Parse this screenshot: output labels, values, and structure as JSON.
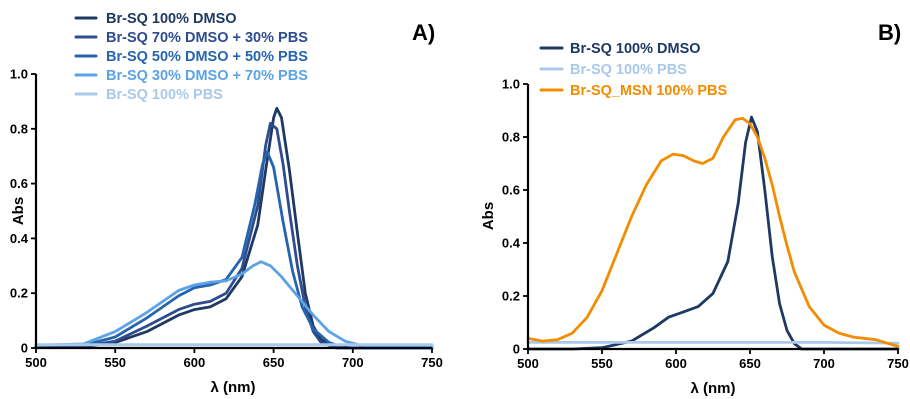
{
  "chart_data": [
    {
      "type": "line",
      "panel_label": "A)",
      "xlabel": "λ (nm)",
      "ylabel": "Abs",
      "xlim": [
        500,
        750
      ],
      "ylim": [
        0,
        1.0
      ],
      "xticks": [
        500,
        550,
        600,
        650,
        700,
        750
      ],
      "yticks": [
        0,
        0.2,
        0.4,
        0.6,
        0.8,
        1.0
      ],
      "xtick_labels": [
        "500",
        "550",
        "600",
        "650",
        "700",
        "750"
      ],
      "ytick_labels": [
        "0",
        "0.2",
        "0.4",
        "0.6",
        "0.8",
        "1.0"
      ],
      "legend_position": "top-left",
      "series": [
        {
          "name": "Br-SQ 100% DMSO",
          "color": "#1f3864",
          "points": [
            [
              500,
              0.005
            ],
            [
              530,
              0.005
            ],
            [
              550,
              0.02
            ],
            [
              570,
              0.06
            ],
            [
              590,
              0.12
            ],
            [
              600,
              0.14
            ],
            [
              610,
              0.15
            ],
            [
              620,
              0.18
            ],
            [
              630,
              0.26
            ],
            [
              640,
              0.45
            ],
            [
              645,
              0.65
            ],
            [
              650,
              0.84
            ],
            [
              652,
              0.875
            ],
            [
              655,
              0.84
            ],
            [
              660,
              0.65
            ],
            [
              665,
              0.42
            ],
            [
              670,
              0.2
            ],
            [
              675,
              0.08
            ],
            [
              680,
              0.03
            ],
            [
              690,
              0.005
            ],
            [
              700,
              0.0
            ],
            [
              750,
              0.0
            ]
          ]
        },
        {
          "name": "Br-SQ 70% DMSO + 30% PBS",
          "color": "#2e4c8f",
          "points": [
            [
              500,
              0.005
            ],
            [
              530,
              0.005
            ],
            [
              550,
              0.025
            ],
            [
              570,
              0.08
            ],
            [
              590,
              0.14
            ],
            [
              600,
              0.16
            ],
            [
              610,
              0.17
            ],
            [
              620,
              0.2
            ],
            [
              630,
              0.29
            ],
            [
              640,
              0.52
            ],
            [
              645,
              0.74
            ],
            [
              648,
              0.82
            ],
            [
              652,
              0.8
            ],
            [
              656,
              0.67
            ],
            [
              660,
              0.5
            ],
            [
              665,
              0.3
            ],
            [
              670,
              0.15
            ],
            [
              675,
              0.06
            ],
            [
              680,
              0.02
            ],
            [
              690,
              0.0
            ],
            [
              750,
              0.0
            ]
          ]
        },
        {
          "name": "Br-SQ 50% DMSO + 50% PBS",
          "color": "#2565ae",
          "points": [
            [
              500,
              0.005
            ],
            [
              530,
              0.01
            ],
            [
              550,
              0.04
            ],
            [
              570,
              0.11
            ],
            [
              590,
              0.19
            ],
            [
              600,
              0.22
            ],
            [
              610,
              0.23
            ],
            [
              620,
              0.25
            ],
            [
              630,
              0.33
            ],
            [
              638,
              0.52
            ],
            [
              643,
              0.67
            ],
            [
              646,
              0.715
            ],
            [
              650,
              0.66
            ],
            [
              656,
              0.46
            ],
            [
              662,
              0.28
            ],
            [
              668,
              0.15
            ],
            [
              675,
              0.07
            ],
            [
              685,
              0.02
            ],
            [
              695,
              0.0
            ],
            [
              750,
              0.0
            ]
          ]
        },
        {
          "name": "Br-SQ 30% DMSO + 70% PBS",
          "color": "#5ba3e6",
          "points": [
            [
              500,
              0.01
            ],
            [
              530,
              0.015
            ],
            [
              550,
              0.06
            ],
            [
              570,
              0.13
            ],
            [
              590,
              0.21
            ],
            [
              600,
              0.23
            ],
            [
              610,
              0.24
            ],
            [
              620,
              0.245
            ],
            [
              630,
              0.27
            ],
            [
              637,
              0.3
            ],
            [
              642,
              0.315
            ],
            [
              648,
              0.3
            ],
            [
              655,
              0.26
            ],
            [
              665,
              0.19
            ],
            [
              675,
              0.12
            ],
            [
              685,
              0.06
            ],
            [
              695,
              0.025
            ],
            [
              705,
              0.01
            ],
            [
              715,
              0.005
            ],
            [
              750,
              0.005
            ]
          ]
        },
        {
          "name": "Br-SQ 100% PBS",
          "color": "#a9c9ea",
          "points": [
            [
              500,
              0.012
            ],
            [
              600,
              0.012
            ],
            [
              700,
              0.012
            ],
            [
              750,
              0.012
            ]
          ]
        }
      ]
    },
    {
      "type": "line",
      "panel_label": "B)",
      "xlabel": "λ (nm)",
      "ylabel": "Abs",
      "xlim": [
        500,
        750
      ],
      "ylim": [
        0,
        1.0
      ],
      "xticks": [
        500,
        550,
        600,
        650,
        700,
        750
      ],
      "yticks": [
        0,
        0.2,
        0.4,
        0.6,
        0.8,
        1.0
      ],
      "xtick_labels": [
        "500",
        "550",
        "600",
        "650",
        "700",
        "750"
      ],
      "ytick_labels": [
        "0",
        "0.2",
        "0.4",
        "0.6",
        "0.8",
        "1.0"
      ],
      "legend_position": "top-left",
      "series": [
        {
          "name": "Br-SQ 100% DMSO",
          "color": "#1f3864",
          "points": [
            [
              500,
              0.0
            ],
            [
              530,
              0.0
            ],
            [
              550,
              0.005
            ],
            [
              570,
              0.03
            ],
            [
              585,
              0.08
            ],
            [
              595,
              0.12
            ],
            [
              605,
              0.14
            ],
            [
              615,
              0.16
            ],
            [
              625,
              0.21
            ],
            [
              635,
              0.33
            ],
            [
              642,
              0.55
            ],
            [
              647,
              0.78
            ],
            [
              651,
              0.875
            ],
            [
              655,
              0.82
            ],
            [
              660,
              0.6
            ],
            [
              665,
              0.35
            ],
            [
              670,
              0.17
            ],
            [
              675,
              0.07
            ],
            [
              680,
              0.02
            ],
            [
              685,
              0.0
            ],
            [
              750,
              0.0
            ]
          ]
        },
        {
          "name": "Br-SQ 100% PBS",
          "color": "#a9c9ea",
          "points": [
            [
              500,
              0.025
            ],
            [
              600,
              0.025
            ],
            [
              700,
              0.025
            ],
            [
              750,
              0.022
            ]
          ]
        },
        {
          "name": "Br-SQ_MSN 100% PBS",
          "color": "#f28c00",
          "points": [
            [
              500,
              0.04
            ],
            [
              510,
              0.03
            ],
            [
              520,
              0.035
            ],
            [
              530,
              0.06
            ],
            [
              540,
              0.12
            ],
            [
              550,
              0.22
            ],
            [
              560,
              0.36
            ],
            [
              570,
              0.5
            ],
            [
              580,
              0.62
            ],
            [
              590,
              0.71
            ],
            [
              598,
              0.735
            ],
            [
              605,
              0.73
            ],
            [
              612,
              0.71
            ],
            [
              618,
              0.7
            ],
            [
              625,
              0.72
            ],
            [
              632,
              0.8
            ],
            [
              640,
              0.865
            ],
            [
              645,
              0.87
            ],
            [
              650,
              0.85
            ],
            [
              655,
              0.8
            ],
            [
              660,
              0.72
            ],
            [
              665,
              0.62
            ],
            [
              670,
              0.5
            ],
            [
              675,
              0.39
            ],
            [
              680,
              0.29
            ],
            [
              690,
              0.16
            ],
            [
              700,
              0.09
            ],
            [
              710,
              0.06
            ],
            [
              720,
              0.045
            ],
            [
              735,
              0.035
            ],
            [
              750,
              0.01
            ]
          ]
        }
      ]
    }
  ]
}
